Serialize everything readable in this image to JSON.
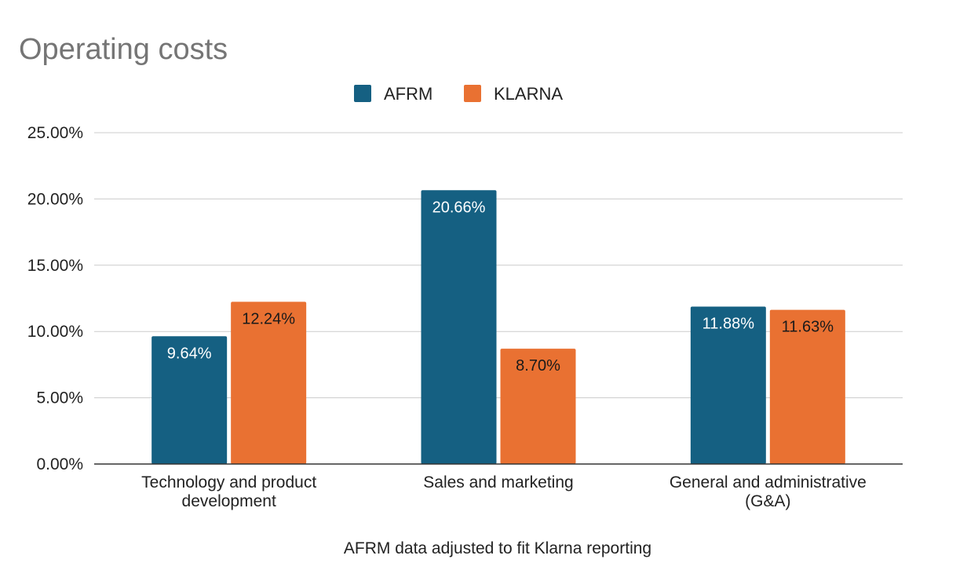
{
  "chart_data": {
    "type": "bar",
    "title": "Operating costs",
    "xlabel": "AFRM data adjusted to fit Klarna reporting",
    "ylabel": "",
    "ylim": [
      0,
      25
    ],
    "yticks": [
      0,
      5,
      10,
      15,
      20,
      25
    ],
    "ytick_labels": [
      "0.00%",
      "5.00%",
      "10.00%",
      "15.00%",
      "20.00%",
      "25.00%"
    ],
    "grid": true,
    "legend_position": "top-center",
    "categories": [
      [
        "Technology and product",
        "development"
      ],
      [
        "Sales and marketing"
      ],
      [
        "General and administrative",
        "(G&A)"
      ]
    ],
    "series": [
      {
        "name": "AFRM",
        "color": "#156082",
        "label_color": "#ffffff",
        "values": [
          9.64,
          20.66,
          11.88
        ],
        "labels": [
          "9.64%",
          "20.66%",
          "11.88%"
        ]
      },
      {
        "name": "KLARNA",
        "color": "#E97132",
        "label_color": "#1a1a1a",
        "values": [
          12.24,
          8.7,
          11.63
        ],
        "labels": [
          "12.24%",
          "8.70%",
          "11.63%"
        ]
      }
    ]
  }
}
